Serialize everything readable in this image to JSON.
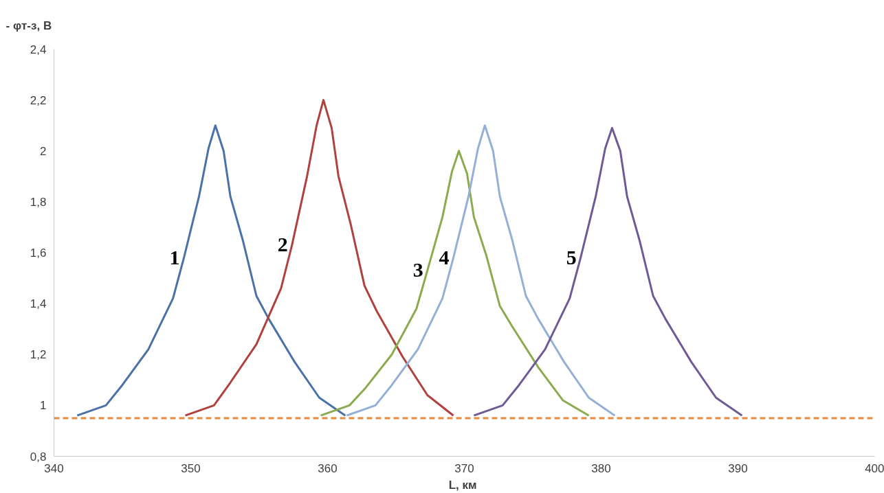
{
  "chart_data": {
    "type": "line",
    "ylabel": "- φт-з, В",
    "xlabel": "L,  км",
    "xlim": [
      340,
      400
    ],
    "xticks": [
      340,
      350,
      360,
      370,
      380,
      390,
      400
    ],
    "ylim": [
      0.8,
      2.4
    ],
    "yticks": [
      {
        "value": 0.8,
        "label": "0,8"
      },
      {
        "value": 1,
        "label": "1"
      },
      {
        "value": 1.2,
        "label": "1,2"
      },
      {
        "value": 1.4,
        "label": "1,4"
      },
      {
        "value": 1.6,
        "label": "1,6"
      },
      {
        "value": 1.8,
        "label": "1,8"
      },
      {
        "value": 2,
        "label": "2"
      },
      {
        "value": 2.2,
        "label": "2,2"
      },
      {
        "value": 2.4,
        "label": "2,4"
      }
    ],
    "grid": false,
    "marker": "none",
    "line_style": "solid",
    "series": [
      {
        "name": "1",
        "color": "#4a72a8",
        "x": [
          341.7,
          343.8,
          345,
          346.9,
          348.7,
          349.5,
          350.6,
          351.3,
          351.8,
          352.4,
          352.9,
          353.8,
          354.8,
          355.7,
          357.6,
          359.4,
          361.3
        ],
        "values": [
          0.96,
          1.0,
          1.08,
          1.22,
          1.42,
          1.58,
          1.82,
          2.01,
          2.1,
          2.0,
          1.82,
          1.65,
          1.43,
          1.34,
          1.17,
          1.03,
          0.96
        ]
      },
      {
        "name": "2",
        "color": "#b0413e",
        "x": [
          349.6,
          351.7,
          352.9,
          354.8,
          356.6,
          357.4,
          358.5,
          359.2,
          359.7,
          360.3,
          360.8,
          361.7,
          362.7,
          363.6,
          365.5,
          367.3,
          369.2
        ],
        "values": [
          0.96,
          1.0,
          1.09,
          1.24,
          1.46,
          1.63,
          1.9,
          2.1,
          2.2,
          2.09,
          1.9,
          1.71,
          1.47,
          1.37,
          1.19,
          1.04,
          0.96
        ]
      },
      {
        "name": "3",
        "color": "#8aab4e",
        "x": [
          359.5,
          361.6,
          362.8,
          364.7,
          366.5,
          367.3,
          368.4,
          369.1,
          369.6,
          370.2,
          370.7,
          371.6,
          372.6,
          373.5,
          375.4,
          377.2,
          379.1
        ],
        "values": [
          0.96,
          1.0,
          1.07,
          1.2,
          1.38,
          1.53,
          1.74,
          1.92,
          2.0,
          1.91,
          1.74,
          1.59,
          1.39,
          1.31,
          1.15,
          1.02,
          0.96
        ]
      },
      {
        "name": "4",
        "color": "#94b0d6",
        "x": [
          361.4,
          363.5,
          364.7,
          366.6,
          368.4,
          369.2,
          370.3,
          371.0,
          371.5,
          372.1,
          372.6,
          373.5,
          374.5,
          375.4,
          377.3,
          379.1,
          381.0
        ],
        "values": [
          0.96,
          1.0,
          1.08,
          1.22,
          1.42,
          1.58,
          1.82,
          2.01,
          2.1,
          2.0,
          1.82,
          1.65,
          1.43,
          1.34,
          1.17,
          1.03,
          0.96
        ]
      },
      {
        "name": "5",
        "color": "#6e5a96",
        "x": [
          370.7,
          372.8,
          374,
          375.9,
          377.7,
          378.5,
          379.6,
          380.3,
          380.8,
          381.4,
          381.9,
          382.8,
          383.8,
          384.7,
          386.6,
          388.4,
          390.3
        ],
        "values": [
          0.96,
          1.0,
          1.08,
          1.22,
          1.42,
          1.58,
          1.82,
          2.01,
          2.09,
          2.0,
          1.82,
          1.65,
          1.43,
          1.34,
          1.17,
          1.03,
          0.96
        ]
      }
    ],
    "ref_lines": [
      {
        "axis": "y",
        "value": 0.95,
        "color": "#e8893a",
        "line_style": "dashed"
      }
    ]
  }
}
